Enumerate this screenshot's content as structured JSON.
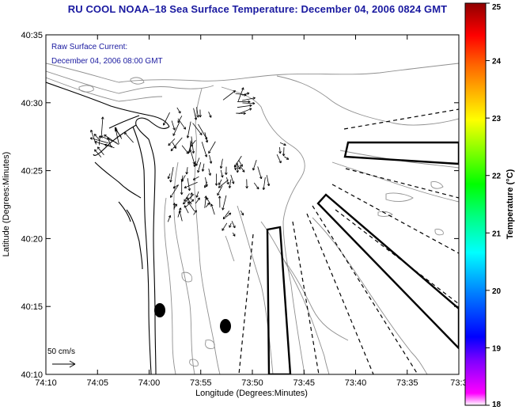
{
  "title": "RU COOL  NOAA–18  Sea Surface Temperature:  December 04, 2006 0824 GMT",
  "annotation": {
    "line1": "Raw Surface Current:",
    "line2": "December 04, 2006 08:00 GMT"
  },
  "axes": {
    "xlabel": "Longitude (Degrees:Minutes)",
    "ylabel": "Latitude (Degrees:Minutes)",
    "xticks": [
      "74:10",
      "74:05",
      "74:00",
      "73:55",
      "73:50",
      "73:45",
      "73:40",
      "73:35",
      "73:3"
    ],
    "yticks": [
      "40:35",
      "40:30",
      "40:25",
      "40:20",
      "40:15",
      "40:10"
    ]
  },
  "scale_label": "50 cm/s",
  "colorbar": {
    "label": "Temperature (°C)",
    "ticks": [
      "25",
      "24",
      "23",
      "22",
      "21",
      "20",
      "19",
      "18"
    ],
    "range": [
      18,
      25
    ],
    "colors": [
      "#ff00ff",
      "#a040ff",
      "#0000ff",
      "#0080ff",
      "#00ffff",
      "#00ff80",
      "#00ff00",
      "#80ff00",
      "#ffff00",
      "#ffc000",
      "#ff8000",
      "#ff0000",
      "#a00000"
    ]
  },
  "colors": {
    "title": "#1a1aa0",
    "annotation": "#1a1aa0",
    "contour": "#909090",
    "coast": "#000000"
  }
}
